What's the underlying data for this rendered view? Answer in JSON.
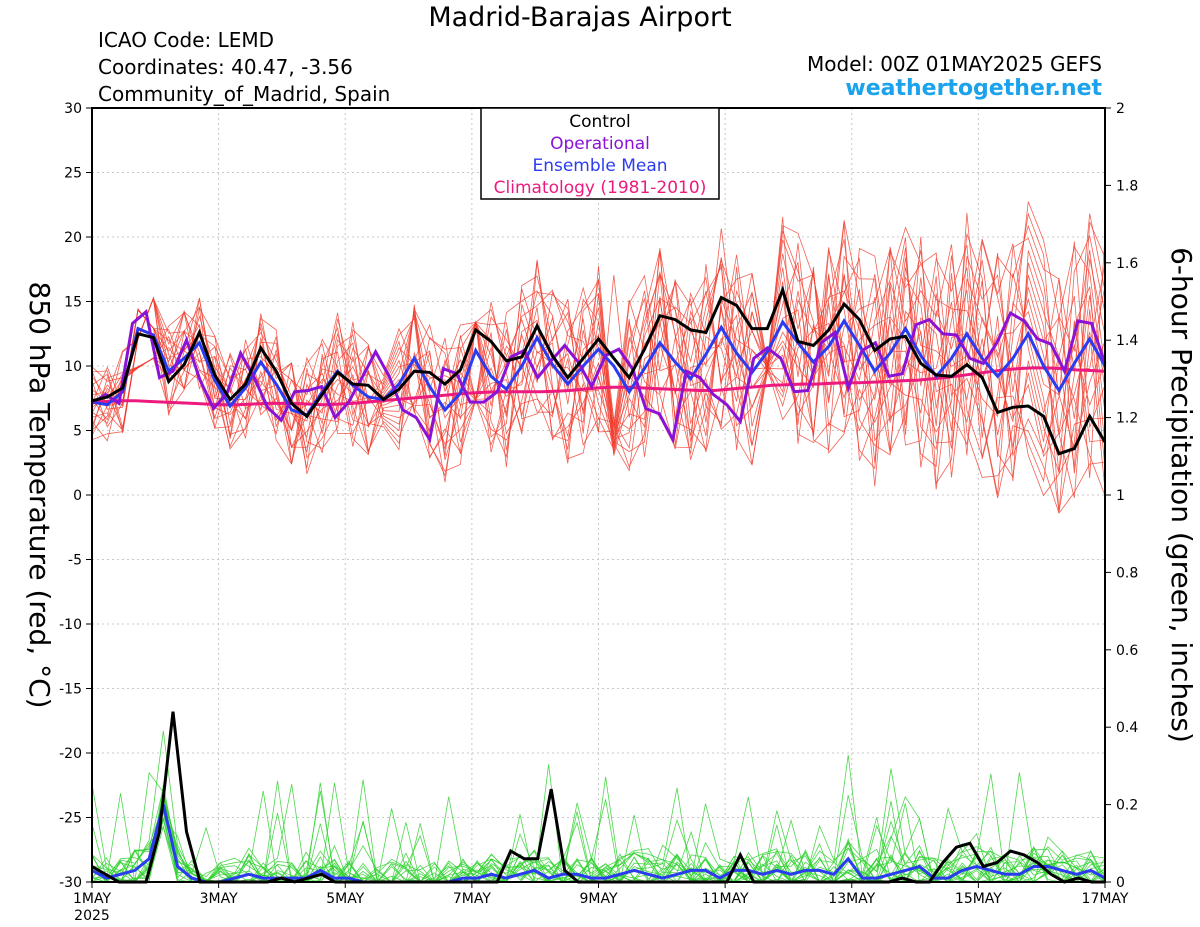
{
  "header": {
    "title": "Madrid-Barajas Airport",
    "icao": "ICAO Code: LEMD",
    "coords": "Coordinates: 40.47, -3.56",
    "region": "Community_of_Madrid, Spain",
    "model": "Model: 00Z 01MAY2025 GEFS",
    "brand": "weathertogether.net"
  },
  "colors": {
    "members_temp": "#f03a2a",
    "members_precip": "#2fd02f",
    "control": "#000000",
    "operational": "#8a12d6",
    "ensemble_mean": "#2b3bf0",
    "climatology": "#ec1a7e",
    "brand": "#1aa3ec"
  },
  "chart_data": {
    "type": "line",
    "x_range_days": [
      0,
      16
    ],
    "x_ticks": [
      {
        "day": 0,
        "label": "1MAY",
        "sub": "2025"
      },
      {
        "day": 2,
        "label": "3MAY"
      },
      {
        "day": 4,
        "label": "5MAY"
      },
      {
        "day": 6,
        "label": "7MAY"
      },
      {
        "day": 8,
        "label": "9MAY"
      },
      {
        "day": 10,
        "label": "11MAY"
      },
      {
        "day": 12,
        "label": "13MAY"
      },
      {
        "day": 14,
        "label": "15MAY"
      },
      {
        "day": 16,
        "label": "17MAY"
      }
    ],
    "y_left": {
      "label": "850 hPa Temperature (red, °C)",
      "range": [
        -30,
        30
      ],
      "ticks": [
        30,
        25,
        20,
        15,
        10,
        5,
        0,
        -5,
        -10,
        -15,
        -20,
        -25,
        -30
      ]
    },
    "y_right": {
      "label": "6-hour Precipitation (green, inches)",
      "range": [
        0,
        2
      ],
      "ticks": [
        2,
        1.8,
        1.6,
        1.4,
        1.2,
        1,
        0.8,
        0.6,
        0.4,
        0.2,
        0
      ]
    },
    "grid": true,
    "legend_position": "top-center",
    "legend": [
      "Control",
      "Operational",
      "Ensemble Mean",
      "Climatology (1981-2010)"
    ],
    "series": {
      "control_temp": [
        7.3,
        7.6,
        8.3,
        12.5,
        12.2,
        8.8,
        10.1,
        12.6,
        9.3,
        7.4,
        8.6,
        11.4,
        9.6,
        7.1,
        6.1,
        7.8,
        9.5,
        8.6,
        8.5,
        7.4,
        8.2,
        9.6,
        9.5,
        8.6,
        9.7,
        12.8,
        11.9,
        10.4,
        10.7,
        13.1,
        10.8,
        9.1,
        10.6,
        12.1,
        10.6,
        9.1,
        11.3,
        13.9,
        13.6,
        12.8,
        12.6,
        15.3,
        14.7,
        12.9,
        12.9,
        15.9,
        11.9,
        11.6,
        12.8,
        14.8,
        13.6,
        11.2,
        12.1,
        12.3,
        10.2,
        9.3,
        9.2,
        10.1,
        9.1,
        6.4,
        6.8,
        6.9,
        6.1,
        3.2,
        3.6,
        6.1,
        4.1
      ],
      "operational_temp": [
        7.1,
        7.8,
        7.1,
        13.3,
        14.2,
        9.1,
        9.6,
        12.0,
        8.9,
        6.7,
        7.9,
        11.0,
        9.1,
        6.8,
        5.8,
        8.0,
        8.1,
        8.4,
        6.0,
        7.2,
        9.1,
        11.1,
        9.2,
        6.6,
        6.0,
        4.3,
        9.8,
        9.4,
        7.2,
        7.2,
        8.0,
        10.7,
        11.2,
        9.1,
        10.4,
        11.6,
        10.3,
        8.4,
        10.8,
        11.3,
        9.8,
        6.7,
        6.3,
        4.3,
        9.6,
        9.1,
        7.8,
        7.0,
        5.7,
        10.6,
        11.4,
        10.6,
        8.0,
        8.1,
        11.8,
        12.6,
        8.3,
        11.2,
        11.8,
        9.2,
        9.4,
        13.2,
        13.6,
        12.5,
        12.4,
        10.6,
        10.2,
        11.8,
        14.1,
        13.5,
        12.1,
        11.7,
        9.6,
        13.5,
        13.3,
        10.2
      ],
      "mean_temp": [
        7.2,
        7.0,
        8.0,
        12.9,
        12.4,
        9.6,
        10.6,
        11.8,
        8.9,
        6.9,
        8.3,
        10.3,
        8.6,
        6.6,
        6.2,
        8.0,
        9.6,
        8.5,
        7.6,
        7.4,
        8.6,
        10.6,
        8.4,
        6.6,
        7.9,
        11.2,
        9.2,
        8.2,
        10.0,
        12.2,
        10.1,
        8.6,
        10.0,
        11.3,
        10.0,
        8.0,
        9.8,
        11.8,
        10.3,
        9.0,
        10.9,
        13.0,
        11.0,
        9.5,
        11.1,
        13.4,
        11.8,
        10.3,
        11.5,
        13.5,
        11.6,
        9.6,
        11.0,
        12.9,
        10.8,
        9.2,
        10.6,
        12.5,
        10.6,
        9.2,
        10.6,
        12.5,
        10.0,
        8.1,
        10.2,
        12.1,
        10.0
      ],
      "clim_temp": [
        7.2,
        7.25,
        7.3,
        7.3,
        7.25,
        7.2,
        7.15,
        7.1,
        7.05,
        7.0,
        7.0,
        7.05,
        7.1,
        7.1,
        7.1,
        7.05,
        7.0,
        7.05,
        7.1,
        7.2,
        7.3,
        7.4,
        7.5,
        7.6,
        7.7,
        7.8,
        7.9,
        7.95,
        8.0,
        8.0,
        8.0,
        8.0,
        8.05,
        8.1,
        8.2,
        8.3,
        8.35,
        8.35,
        8.3,
        8.25,
        8.2,
        8.15,
        8.1,
        8.1,
        8.2,
        8.3,
        8.4,
        8.5,
        8.55,
        8.6,
        8.6,
        8.65,
        8.7,
        8.7,
        8.75,
        8.8,
        8.85,
        8.9,
        9.0,
        9.1,
        9.25,
        9.4,
        9.55,
        9.7,
        9.8,
        9.85,
        9.85,
        9.8,
        9.7,
        9.65,
        9.6
      ],
      "control_precip": [
        0.04,
        0.02,
        0,
        0,
        0,
        0.13,
        0.44,
        0.13,
        0,
        0,
        0,
        0,
        0,
        0,
        0.01,
        0,
        0.01,
        0.02,
        0,
        0,
        0,
        0,
        0,
        0,
        0,
        0,
        0,
        0,
        0,
        0,
        0,
        0.08,
        0.06,
        0.06,
        0.24,
        0.03,
        0,
        0,
        0,
        0,
        0,
        0,
        0,
        0,
        0,
        0,
        0,
        0,
        0.07,
        0,
        0,
        0,
        0,
        0,
        0,
        0,
        0,
        0,
        0,
        0,
        0.01,
        0,
        0,
        0.05,
        0.09,
        0.1,
        0.04,
        0.05,
        0.08,
        0.07,
        0.05,
        0.02,
        0,
        0.01,
        0,
        0
      ],
      "mean_precip": [
        0.03,
        0.01,
        0.02,
        0.03,
        0.06,
        0.2,
        0.04,
        0.01,
        0,
        0,
        0.01,
        0.02,
        0.01,
        0.01,
        0.01,
        0.01,
        0.03,
        0.01,
        0.01,
        0,
        0,
        0,
        0,
        0,
        0,
        0,
        0.01,
        0.01,
        0.02,
        0.01,
        0.02,
        0.03,
        0.01,
        0.02,
        0.02,
        0.01,
        0.01,
        0.02,
        0.03,
        0.02,
        0.01,
        0.02,
        0.03,
        0.03,
        0.01,
        0.03,
        0.03,
        0.02,
        0.03,
        0.02,
        0.03,
        0.03,
        0.02,
        0.06,
        0.01,
        0.01,
        0.02,
        0.03,
        0.04,
        0.01,
        0.01,
        0.03,
        0.04,
        0.03,
        0.02,
        0.02,
        0.04,
        0.04,
        0.03,
        0.02,
        0.03,
        0.01
      ]
    }
  }
}
